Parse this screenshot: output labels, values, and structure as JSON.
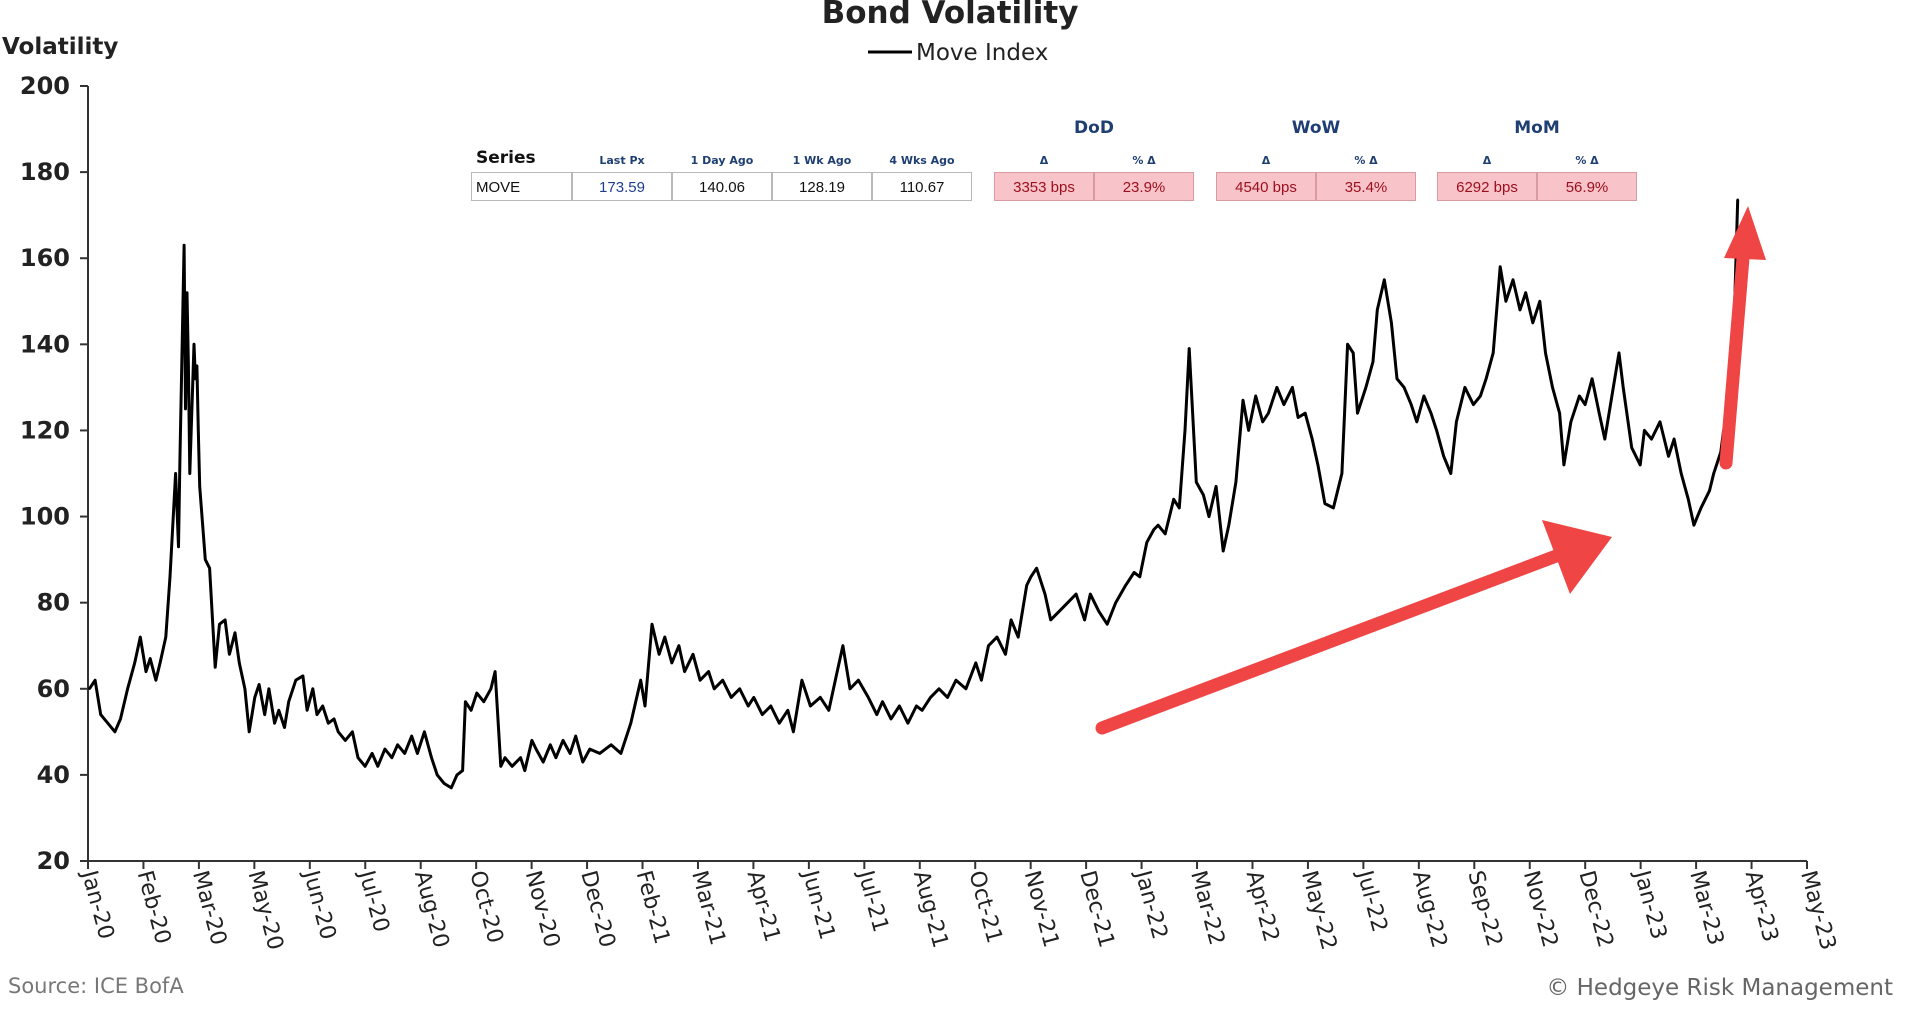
{
  "chart_data": {
    "type": "line",
    "title": "Bond Volatility",
    "ylabel": "Volatility",
    "ylim": [
      20,
      200
    ],
    "yticks": [
      20,
      40,
      60,
      80,
      100,
      120,
      140,
      160,
      180,
      200
    ],
    "grid": false,
    "legend": "top-center",
    "xtick_labels": [
      "Jan-20",
      "Feb-20",
      "Mar-20",
      "May-20",
      "Jun-20",
      "Jul-20",
      "Aug-20",
      "Oct-20",
      "Nov-20",
      "Dec-20",
      "Feb-21",
      "Mar-21",
      "Apr-21",
      "Jun-21",
      "Jul-21",
      "Aug-21",
      "Oct-21",
      "Nov-21",
      "Dec-21",
      "Jan-22",
      "Mar-22",
      "Apr-22",
      "May-22",
      "Jul-22",
      "Aug-22",
      "Sep-22",
      "Nov-22",
      "Dec-22",
      "Jan-23",
      "Mar-23",
      "Apr-23",
      "May-23"
    ],
    "series": [
      {
        "name": "Move Index",
        "color": "#000000",
        "points": [
          [
            "2020-01-02",
            60
          ],
          [
            "2020-01-06",
            62
          ],
          [
            "2020-01-10",
            54
          ],
          [
            "2020-01-15",
            52
          ],
          [
            "2020-01-20",
            50
          ],
          [
            "2020-01-24",
            53
          ],
          [
            "2020-01-29",
            60
          ],
          [
            "2020-02-03",
            66
          ],
          [
            "2020-02-07",
            72
          ],
          [
            "2020-02-11",
            64
          ],
          [
            "2020-02-14",
            67
          ],
          [
            "2020-02-18",
            62
          ],
          [
            "2020-02-21",
            66
          ],
          [
            "2020-02-25",
            72
          ],
          [
            "2020-02-28",
            86
          ],
          [
            "2020-03-03",
            110
          ],
          [
            "2020-03-05",
            93
          ],
          [
            "2020-03-06",
            113
          ],
          [
            "2020-03-09",
            163
          ],
          [
            "2020-03-10",
            125
          ],
          [
            "2020-03-11",
            152
          ],
          [
            "2020-03-12",
            135
          ],
          [
            "2020-03-13",
            110
          ],
          [
            "2020-03-16",
            140
          ],
          [
            "2020-03-17",
            132
          ],
          [
            "2020-03-18",
            135
          ],
          [
            "2020-03-19",
            120
          ],
          [
            "2020-03-20",
            107
          ],
          [
            "2020-03-24",
            90
          ],
          [
            "2020-03-27",
            88
          ],
          [
            "2020-03-31",
            65
          ],
          [
            "2020-04-03",
            75
          ],
          [
            "2020-04-07",
            76
          ],
          [
            "2020-04-10",
            68
          ],
          [
            "2020-04-14",
            73
          ],
          [
            "2020-04-17",
            66
          ],
          [
            "2020-04-21",
            60
          ],
          [
            "2020-04-24",
            50
          ],
          [
            "2020-04-28",
            58
          ],
          [
            "2020-05-01",
            61
          ],
          [
            "2020-05-05",
            54
          ],
          [
            "2020-05-08",
            60
          ],
          [
            "2020-05-12",
            52
          ],
          [
            "2020-05-15",
            55
          ],
          [
            "2020-05-19",
            51
          ],
          [
            "2020-05-22",
            57
          ],
          [
            "2020-05-27",
            62
          ],
          [
            "2020-06-01",
            63
          ],
          [
            "2020-06-04",
            55
          ],
          [
            "2020-06-08",
            60
          ],
          [
            "2020-06-11",
            54
          ],
          [
            "2020-06-15",
            56
          ],
          [
            "2020-06-19",
            52
          ],
          [
            "2020-06-23",
            53
          ],
          [
            "2020-06-26",
            50
          ],
          [
            "2020-07-01",
            48
          ],
          [
            "2020-07-06",
            50
          ],
          [
            "2020-07-10",
            44
          ],
          [
            "2020-07-15",
            42
          ],
          [
            "2020-07-20",
            45
          ],
          [
            "2020-07-24",
            42
          ],
          [
            "2020-07-29",
            46
          ],
          [
            "2020-08-03",
            44
          ],
          [
            "2020-08-07",
            47
          ],
          [
            "2020-08-12",
            45
          ],
          [
            "2020-08-17",
            49
          ],
          [
            "2020-08-21",
            45
          ],
          [
            "2020-08-26",
            50
          ],
          [
            "2020-08-31",
            44
          ],
          [
            "2020-09-04",
            40
          ],
          [
            "2020-09-09",
            38
          ],
          [
            "2020-09-14",
            37
          ],
          [
            "2020-09-18",
            40
          ],
          [
            "2020-09-22",
            41
          ],
          [
            "2020-09-24",
            57
          ],
          [
            "2020-09-28",
            55
          ],
          [
            "2020-10-02",
            59
          ],
          [
            "2020-10-07",
            57
          ],
          [
            "2020-10-12",
            60
          ],
          [
            "2020-10-15",
            64
          ],
          [
            "2020-10-19",
            42
          ],
          [
            "2020-10-22",
            44
          ],
          [
            "2020-10-27",
            42
          ],
          [
            "2020-11-02",
            44
          ],
          [
            "2020-11-05",
            41
          ],
          [
            "2020-11-10",
            48
          ],
          [
            "2020-11-13",
            46
          ],
          [
            "2020-11-18",
            43
          ],
          [
            "2020-11-23",
            47
          ],
          [
            "2020-11-27",
            44
          ],
          [
            "2020-12-02",
            48
          ],
          [
            "2020-12-07",
            45
          ],
          [
            "2020-12-11",
            49
          ],
          [
            "2020-12-16",
            43
          ],
          [
            "2020-12-21",
            46
          ],
          [
            "2020-12-28",
            45
          ],
          [
            "2021-01-05",
            47
          ],
          [
            "2021-01-12",
            45
          ],
          [
            "2021-01-19",
            52
          ],
          [
            "2021-01-26",
            62
          ],
          [
            "2021-01-29",
            56
          ],
          [
            "2021-02-03",
            75
          ],
          [
            "2021-02-08",
            68
          ],
          [
            "2021-02-12",
            72
          ],
          [
            "2021-02-17",
            66
          ],
          [
            "2021-02-22",
            70
          ],
          [
            "2021-02-26",
            64
          ],
          [
            "2021-03-04",
            68
          ],
          [
            "2021-03-09",
            62
          ],
          [
            "2021-03-15",
            64
          ],
          [
            "2021-03-19",
            60
          ],
          [
            "2021-03-25",
            62
          ],
          [
            "2021-03-31",
            58
          ],
          [
            "2021-04-06",
            60
          ],
          [
            "2021-04-12",
            56
          ],
          [
            "2021-04-16",
            58
          ],
          [
            "2021-04-22",
            54
          ],
          [
            "2021-04-28",
            56
          ],
          [
            "2021-05-04",
            52
          ],
          [
            "2021-05-10",
            55
          ],
          [
            "2021-05-14",
            50
          ],
          [
            "2021-05-20",
            62
          ],
          [
            "2021-05-26",
            56
          ],
          [
            "2021-06-02",
            58
          ],
          [
            "2021-06-08",
            55
          ],
          [
            "2021-06-14",
            64
          ],
          [
            "2021-06-18",
            70
          ],
          [
            "2021-06-23",
            60
          ],
          [
            "2021-06-29",
            62
          ],
          [
            "2021-07-06",
            58
          ],
          [
            "2021-07-12",
            54
          ],
          [
            "2021-07-16",
            57
          ],
          [
            "2021-07-22",
            53
          ],
          [
            "2021-07-28",
            56
          ],
          [
            "2021-08-03",
            52
          ],
          [
            "2021-08-09",
            56
          ],
          [
            "2021-08-13",
            55
          ],
          [
            "2021-08-19",
            58
          ],
          [
            "2021-08-25",
            60
          ],
          [
            "2021-08-31",
            58
          ],
          [
            "2021-09-06",
            62
          ],
          [
            "2021-09-13",
            60
          ],
          [
            "2021-09-20",
            66
          ],
          [
            "2021-09-24",
            62
          ],
          [
            "2021-09-29",
            70
          ],
          [
            "2021-10-05",
            72
          ],
          [
            "2021-10-11",
            68
          ],
          [
            "2021-10-15",
            76
          ],
          [
            "2021-10-20",
            72
          ],
          [
            "2021-10-26",
            84
          ],
          [
            "2021-10-29",
            86
          ],
          [
            "2021-11-02",
            88
          ],
          [
            "2021-11-08",
            82
          ],
          [
            "2021-11-12",
            76
          ],
          [
            "2021-11-18",
            78
          ],
          [
            "2021-11-24",
            80
          ],
          [
            "2021-11-30",
            82
          ],
          [
            "2021-12-06",
            76
          ],
          [
            "2021-12-10",
            82
          ],
          [
            "2021-12-16",
            78
          ],
          [
            "2021-12-22",
            75
          ],
          [
            "2021-12-28",
            80
          ],
          [
            "2022-01-04",
            84
          ],
          [
            "2022-01-10",
            87
          ],
          [
            "2022-01-14",
            86
          ],
          [
            "2022-01-19",
            94
          ],
          [
            "2022-01-24",
            97
          ],
          [
            "2022-01-27",
            98
          ],
          [
            "2022-02-01",
            96
          ],
          [
            "2022-02-07",
            104
          ],
          [
            "2022-02-11",
            102
          ],
          [
            "2022-02-15",
            120
          ],
          [
            "2022-02-18",
            139
          ],
          [
            "2022-02-23",
            108
          ],
          [
            "2022-02-28",
            105
          ],
          [
            "2022-03-04",
            100
          ],
          [
            "2022-03-09",
            107
          ],
          [
            "2022-03-14",
            92
          ],
          [
            "2022-03-18",
            98
          ],
          [
            "2022-03-23",
            108
          ],
          [
            "2022-03-28",
            127
          ],
          [
            "2022-04-01",
            120
          ],
          [
            "2022-04-06",
            128
          ],
          [
            "2022-04-11",
            122
          ],
          [
            "2022-04-15",
            124
          ],
          [
            "2022-04-21",
            130
          ],
          [
            "2022-04-26",
            126
          ],
          [
            "2022-05-02",
            130
          ],
          [
            "2022-05-06",
            123
          ],
          [
            "2022-05-11",
            124
          ],
          [
            "2022-05-16",
            118
          ],
          [
            "2022-05-20",
            112
          ],
          [
            "2022-05-25",
            103
          ],
          [
            "2022-05-31",
            102
          ],
          [
            "2022-06-06",
            110
          ],
          [
            "2022-06-10",
            140
          ],
          [
            "2022-06-14",
            138
          ],
          [
            "2022-06-17",
            124
          ],
          [
            "2022-06-23",
            130
          ],
          [
            "2022-06-28",
            136
          ],
          [
            "2022-07-01",
            148
          ],
          [
            "2022-07-06",
            155
          ],
          [
            "2022-07-11",
            145
          ],
          [
            "2022-07-15",
            132
          ],
          [
            "2022-07-20",
            130
          ],
          [
            "2022-07-25",
            126
          ],
          [
            "2022-07-29",
            122
          ],
          [
            "2022-08-03",
            128
          ],
          [
            "2022-08-08",
            124
          ],
          [
            "2022-08-12",
            120
          ],
          [
            "2022-08-17",
            114
          ],
          [
            "2022-08-22",
            110
          ],
          [
            "2022-08-26",
            122
          ],
          [
            "2022-09-01",
            130
          ],
          [
            "2022-09-07",
            126
          ],
          [
            "2022-09-12",
            128
          ],
          [
            "2022-09-16",
            132
          ],
          [
            "2022-09-21",
            138
          ],
          [
            "2022-09-26",
            158
          ],
          [
            "2022-09-30",
            150
          ],
          [
            "2022-10-05",
            155
          ],
          [
            "2022-10-10",
            148
          ],
          [
            "2022-10-14",
            152
          ],
          [
            "2022-10-19",
            145
          ],
          [
            "2022-10-24",
            150
          ],
          [
            "2022-10-28",
            138
          ],
          [
            "2022-11-02",
            130
          ],
          [
            "2022-11-07",
            124
          ],
          [
            "2022-11-10",
            112
          ],
          [
            "2022-11-15",
            122
          ],
          [
            "2022-11-21",
            128
          ],
          [
            "2022-11-25",
            126
          ],
          [
            "2022-11-30",
            132
          ],
          [
            "2022-12-05",
            124
          ],
          [
            "2022-12-09",
            118
          ],
          [
            "2022-12-14",
            128
          ],
          [
            "2022-12-19",
            138
          ],
          [
            "2022-12-22",
            130
          ],
          [
            "2022-12-28",
            116
          ],
          [
            "2023-01-03",
            112
          ],
          [
            "2023-01-06",
            120
          ],
          [
            "2023-01-11",
            118
          ],
          [
            "2023-01-17",
            122
          ],
          [
            "2023-01-23",
            114
          ],
          [
            "2023-01-27",
            118
          ],
          [
            "2023-02-01",
            110
          ],
          [
            "2023-02-06",
            104
          ],
          [
            "2023-02-10",
            98
          ],
          [
            "2023-02-15",
            102
          ],
          [
            "2023-02-21",
            106
          ],
          [
            "2023-02-24",
            110
          ],
          [
            "2023-03-01",
            115
          ],
          [
            "2023-03-03",
            120
          ],
          [
            "2023-03-07",
            122
          ],
          [
            "2023-03-09",
            128
          ],
          [
            "2023-03-10",
            140
          ],
          [
            "2023-03-13",
            173.59
          ]
        ]
      }
    ],
    "annotations": [
      "upward red arrow (rising trend from late 2021)",
      "upward red arrow near Mar-23 spike"
    ]
  },
  "stats_table": {
    "series_header": "Series",
    "col_headers": [
      "Last Px",
      "1 Day Ago",
      "1 Wk Ago",
      "4 Wks Ago"
    ],
    "groups": [
      {
        "title": "DoD",
        "delta": "Δ",
        "pct": "% Δ",
        "delta_value": "3353 bps",
        "pct_value": "23.9%"
      },
      {
        "title": "WoW",
        "delta": "Δ",
        "pct": "% Δ",
        "delta_value": "4540 bps",
        "pct_value": "35.4%"
      },
      {
        "title": "MoM",
        "delta": "Δ",
        "pct": "% Δ",
        "delta_value": "6292 bps",
        "pct_value": "56.9%"
      }
    ],
    "row": {
      "name": "MOVE",
      "last_px": "173.59",
      "day_ago": "140.06",
      "wk_ago": "128.19",
      "four_wk_ago": "110.67"
    }
  },
  "footer": {
    "source": "Source: ICE BofA",
    "credit": "© Hedgeye Risk Management"
  },
  "colors": {
    "line": "#000000",
    "arrow": "#f04545",
    "neg_cell_bg": "#f8c3c9",
    "header_blue": "#1f3f73"
  }
}
